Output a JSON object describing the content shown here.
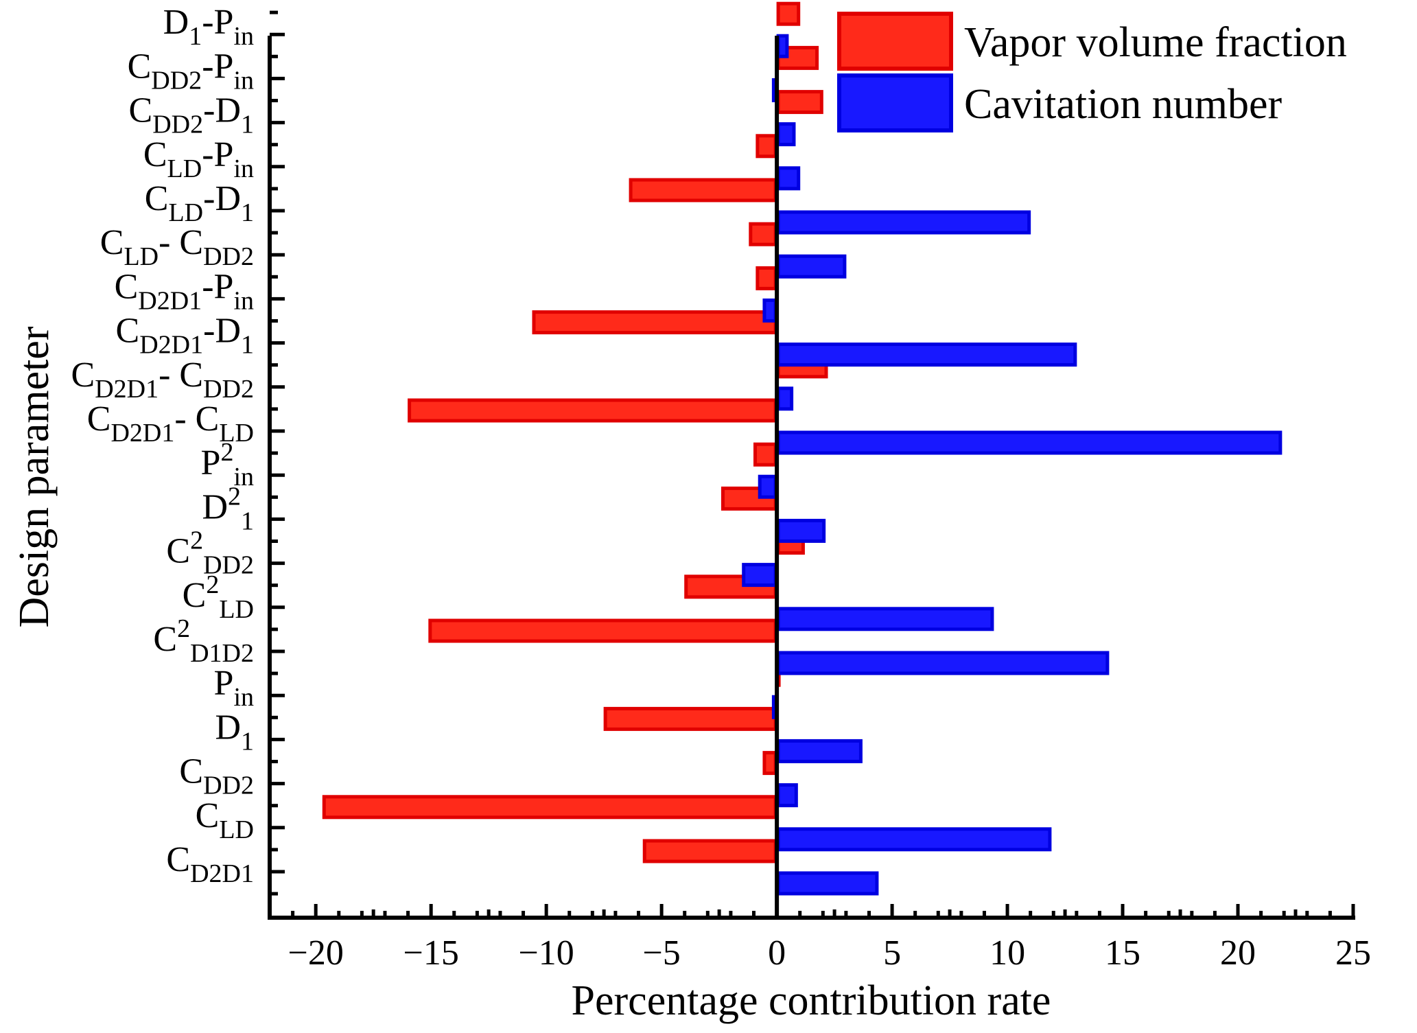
{
  "chart_data": {
    "type": "bar",
    "orientation": "horizontal",
    "title": "",
    "xlabel": "Percentage contribution rate",
    "ylabel": "Design parameter",
    "xlim": [
      -22,
      25
    ],
    "xticks": [
      -20,
      -15,
      -10,
      -5,
      0,
      5,
      10,
      15,
      20,
      25
    ],
    "legend_position": "top-right",
    "categories": [
      {
        "id": "CD2D1",
        "label": [
          [
            "C",
            ""
          ],
          [
            "D2D1",
            "sub"
          ]
        ]
      },
      {
        "id": "CLD",
        "label": [
          [
            "C",
            ""
          ],
          [
            "LD",
            "sub"
          ]
        ]
      },
      {
        "id": "CDD2",
        "label": [
          [
            "C",
            ""
          ],
          [
            "DD2",
            "sub"
          ]
        ]
      },
      {
        "id": "D1",
        "label": [
          [
            "D",
            ""
          ],
          [
            "1",
            "sub"
          ]
        ]
      },
      {
        "id": "Pin",
        "label": [
          [
            "P",
            ""
          ],
          [
            "in",
            "sub"
          ]
        ]
      },
      {
        "id": "C2D1D2",
        "label": [
          [
            "C",
            ""
          ],
          [
            "2",
            "sup"
          ],
          [
            "D1D2",
            "sub"
          ]
        ]
      },
      {
        "id": "C2LD",
        "label": [
          [
            "C",
            ""
          ],
          [
            "2",
            "sup"
          ],
          [
            "LD",
            "sub"
          ]
        ]
      },
      {
        "id": "C2DD2",
        "label": [
          [
            "C",
            ""
          ],
          [
            "2",
            "sup"
          ],
          [
            "DD2",
            "sub"
          ]
        ]
      },
      {
        "id": "D21",
        "label": [
          [
            "D",
            ""
          ],
          [
            "2",
            "sup"
          ],
          [
            "1",
            "sub"
          ]
        ]
      },
      {
        "id": "P2in",
        "label": [
          [
            "P",
            ""
          ],
          [
            "2",
            "sup"
          ],
          [
            "in",
            "sub"
          ]
        ]
      },
      {
        "id": "CD2D1-CLD",
        "label": [
          [
            "C",
            ""
          ],
          [
            "D2D1",
            "sub"
          ],
          [
            "- C",
            ""
          ],
          [
            "LD",
            "sub"
          ]
        ]
      },
      {
        "id": "CD2D1-CDD2",
        "label": [
          [
            "C",
            ""
          ],
          [
            "D2D1",
            "sub"
          ],
          [
            "- C",
            ""
          ],
          [
            "DD2",
            "sub"
          ]
        ]
      },
      {
        "id": "CD2D1-D1",
        "label": [
          [
            "C",
            ""
          ],
          [
            "D2D1",
            "sub"
          ],
          [
            "-D",
            ""
          ],
          [
            "1",
            "sub"
          ]
        ]
      },
      {
        "id": "CD2D1-Pin",
        "label": [
          [
            "C",
            ""
          ],
          [
            "D2D1",
            "sub"
          ],
          [
            "-P",
            ""
          ],
          [
            "in",
            "sub"
          ]
        ]
      },
      {
        "id": "CLD-CDD2",
        "label": [
          [
            "C",
            ""
          ],
          [
            "LD",
            "sub"
          ],
          [
            "- C",
            ""
          ],
          [
            "DD2",
            "sub"
          ]
        ]
      },
      {
        "id": "CLD-D1",
        "label": [
          [
            "C",
            ""
          ],
          [
            "LD",
            "sub"
          ],
          [
            "-D",
            ""
          ],
          [
            "1",
            "sub"
          ]
        ]
      },
      {
        "id": "CLD-Pin",
        "label": [
          [
            "C",
            ""
          ],
          [
            "LD",
            "sub"
          ],
          [
            "-P",
            ""
          ],
          [
            "in",
            "sub"
          ]
        ]
      },
      {
        "id": "CDD2-D1",
        "label": [
          [
            "C",
            ""
          ],
          [
            "DD2",
            "sub"
          ],
          [
            "-D",
            ""
          ],
          [
            "1",
            "sub"
          ]
        ]
      },
      {
        "id": "CDD2-Pin",
        "label": [
          [
            "C",
            ""
          ],
          [
            "DD2",
            "sub"
          ],
          [
            "-P",
            ""
          ],
          [
            "in",
            "sub"
          ]
        ]
      },
      {
        "id": "D1-Pin",
        "label": [
          [
            "D",
            ""
          ],
          [
            "1",
            "sub"
          ],
          [
            "-P",
            ""
          ],
          [
            "in",
            "sub"
          ]
        ]
      }
    ],
    "series": [
      {
        "name": "Vapor volume fraction",
        "color": "#ff2a1a",
        "values": [
          -5.8,
          -19.7,
          -0.6,
          -7.5,
          0.1,
          -15.1,
          -4.0,
          1.2,
          -2.4,
          -1.0,
          -16.0,
          2.2,
          -10.6,
          -0.9,
          -1.2,
          -6.4,
          -0.9,
          2.0,
          1.8,
          1.0
        ]
      },
      {
        "name": "Cavitation number",
        "color": "#1818ff",
        "values": [
          4.4,
          11.9,
          0.9,
          3.7,
          -0.2,
          14.4,
          9.4,
          -1.5,
          2.1,
          -0.8,
          21.9,
          0.7,
          13.0,
          -0.6,
          3.0,
          11.0,
          1.0,
          0.8,
          -0.2,
          0.5
        ]
      }
    ]
  }
}
